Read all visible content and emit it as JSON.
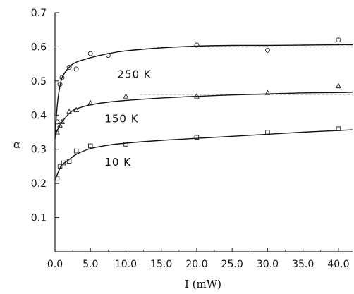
{
  "chart_data": {
    "type": "scatter",
    "title": "",
    "xlabel": "I (mW)",
    "ylabel": "α",
    "xlim": [
      0,
      42
    ],
    "ylim": [
      0,
      0.7
    ],
    "x_ticks": [
      0,
      5,
      10,
      15,
      20,
      25,
      30,
      35,
      40
    ],
    "x_tick_labels": [
      "0.0",
      "5.0",
      "10.0",
      "15.0",
      "20.0",
      "25.0",
      "30.0",
      "35.0",
      "40.0"
    ],
    "y_ticks": [
      0.1,
      0.2,
      0.3,
      0.4,
      0.5,
      0.6,
      0.7
    ],
    "y_tick_labels": [
      "0.1",
      "0.2",
      "0.3",
      "0.4",
      "0.5",
      "0.6",
      "0.7"
    ],
    "grid": false,
    "reference_lines": [
      0.6,
      0.46
    ],
    "series": [
      {
        "name": "250 K",
        "marker": "circle",
        "points": [
          [
            0.3,
            0.38
          ],
          [
            0.7,
            0.49
          ],
          [
            1.0,
            0.51
          ],
          [
            2.0,
            0.54
          ],
          [
            3.0,
            0.535
          ],
          [
            5.0,
            0.58
          ],
          [
            7.5,
            0.575
          ],
          [
            20.0,
            0.605
          ],
          [
            30.0,
            0.59
          ],
          [
            40.0,
            0.62
          ]
        ],
        "fit": [
          [
            0.0,
            0.33
          ],
          [
            0.2,
            0.4
          ],
          [
            0.5,
            0.46
          ],
          [
            1.0,
            0.51
          ],
          [
            2.0,
            0.54
          ],
          [
            3.0,
            0.555
          ],
          [
            5.0,
            0.568
          ],
          [
            7.5,
            0.58
          ],
          [
            10.0,
            0.588
          ],
          [
            15.0,
            0.597
          ],
          [
            20.0,
            0.602
          ],
          [
            25.0,
            0.604
          ],
          [
            30.0,
            0.604
          ],
          [
            35.0,
            0.605
          ],
          [
            40.0,
            0.606
          ],
          [
            42.0,
            0.606
          ]
        ]
      },
      {
        "name": "150 K",
        "marker": "triangle",
        "points": [
          [
            0.3,
            0.35
          ],
          [
            0.7,
            0.37
          ],
          [
            1.0,
            0.38
          ],
          [
            2.0,
            0.41
          ],
          [
            3.0,
            0.415
          ],
          [
            5.0,
            0.435
          ],
          [
            10.0,
            0.455
          ],
          [
            20.0,
            0.455
          ],
          [
            30.0,
            0.465
          ],
          [
            40.0,
            0.485
          ]
        ],
        "fit": [
          [
            0.0,
            0.34
          ],
          [
            0.3,
            0.355
          ],
          [
            0.7,
            0.37
          ],
          [
            1.0,
            0.38
          ],
          [
            2.0,
            0.405
          ],
          [
            3.0,
            0.418
          ],
          [
            5.0,
            0.43
          ],
          [
            7.5,
            0.438
          ],
          [
            10.0,
            0.443
          ],
          [
            15.0,
            0.45
          ],
          [
            20.0,
            0.455
          ],
          [
            25.0,
            0.459
          ],
          [
            30.0,
            0.462
          ],
          [
            35.0,
            0.465
          ],
          [
            40.0,
            0.466
          ],
          [
            42.0,
            0.467
          ]
        ]
      },
      {
        "name": "10 K",
        "marker": "square",
        "points": [
          [
            0.3,
            0.215
          ],
          [
            0.7,
            0.25
          ],
          [
            1.2,
            0.26
          ],
          [
            2.0,
            0.265
          ],
          [
            3.0,
            0.295
          ],
          [
            5.0,
            0.31
          ],
          [
            10.0,
            0.315
          ],
          [
            20.0,
            0.335
          ],
          [
            30.0,
            0.35
          ],
          [
            40.0,
            0.36
          ]
        ],
        "fit": [
          [
            0.0,
            0.21
          ],
          [
            0.3,
            0.225
          ],
          [
            0.7,
            0.245
          ],
          [
            1.0,
            0.255
          ],
          [
            2.0,
            0.27
          ],
          [
            3.0,
            0.285
          ],
          [
            5.0,
            0.302
          ],
          [
            7.5,
            0.312
          ],
          [
            10.0,
            0.318
          ],
          [
            15.0,
            0.326
          ],
          [
            20.0,
            0.332
          ],
          [
            25.0,
            0.338
          ],
          [
            30.0,
            0.344
          ],
          [
            35.0,
            0.35
          ],
          [
            40.0,
            0.355
          ],
          [
            42.0,
            0.357
          ]
        ]
      }
    ]
  }
}
